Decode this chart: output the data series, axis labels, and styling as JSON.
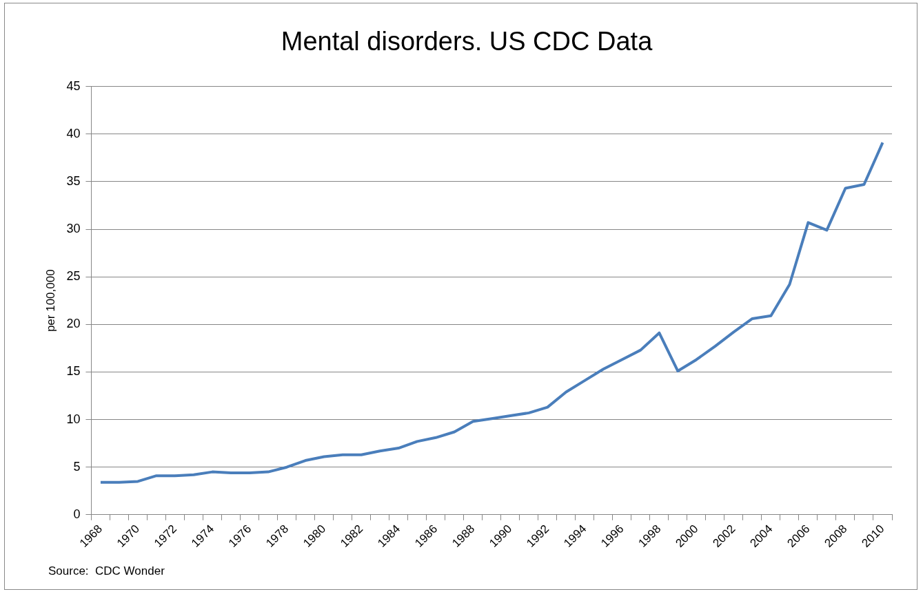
{
  "chart_data": {
    "type": "line",
    "title": "Mental disorders. US CDC Data",
    "ylabel": "per 100,000",
    "categories": [
      "1968",
      null,
      "1970",
      null,
      "1972",
      null,
      "1974",
      null,
      "1976",
      null,
      "1978",
      null,
      "1980",
      null,
      "1982",
      null,
      "1984",
      null,
      "1986",
      null,
      "1988",
      null,
      "1990",
      null,
      "1992",
      null,
      "1994",
      null,
      "1996",
      null,
      "1998",
      null,
      "2000",
      null,
      "2002",
      null,
      "2004",
      null,
      "2006",
      null,
      "2008",
      null,
      "2010"
    ],
    "series": [
      {
        "color": "#4a7ebb",
        "values": [
          3.4,
          3.4,
          3.5,
          4.1,
          4.1,
          4.2,
          4.5,
          4.4,
          4.4,
          4.5,
          5.0,
          5.7,
          6.1,
          6.3,
          6.3,
          6.7,
          7.0,
          7.7,
          8.1,
          8.7,
          9.8,
          10.1,
          10.4,
          10.7,
          11.3,
          12.9,
          14.1,
          15.3,
          16.3,
          17.3,
          19.1,
          15.1,
          16.3,
          17.7,
          19.2,
          20.6,
          20.9,
          24.2,
          30.7,
          29.9,
          34.3,
          34.7,
          39.1
        ]
      }
    ],
    "ylim": [
      0,
      45
    ],
    "yticks": [
      0,
      5,
      10,
      15,
      20,
      25,
      30,
      35,
      40,
      45
    ],
    "grid": "y",
    "legend": false,
    "marker": "none",
    "line_style": "solid",
    "annotations": [
      "Source:  CDC Wonder"
    ]
  }
}
